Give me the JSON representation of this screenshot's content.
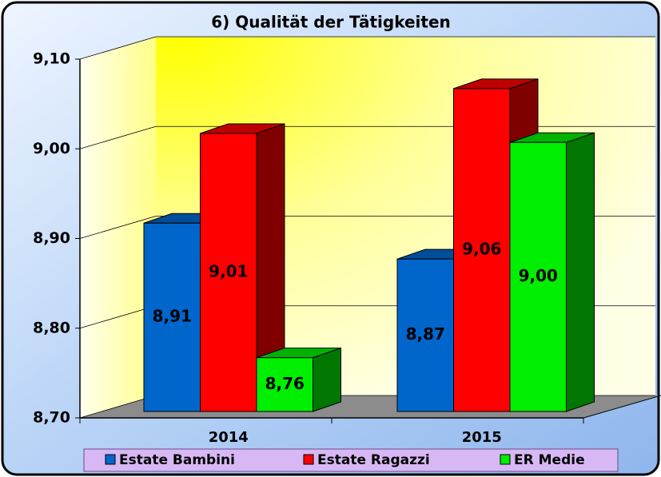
{
  "chart_data": {
    "type": "bar3d",
    "title": "6) Qualität der Tätigkeiten",
    "categories": [
      "2014",
      "2015"
    ],
    "series": [
      {
        "name": "Estate Bambini",
        "color": "#0066cc",
        "values": [
          8.91,
          8.87
        ],
        "value_labels": [
          "8,91",
          "8,87"
        ]
      },
      {
        "name": "Estate Ragazzi",
        "color": "#ff0000",
        "values": [
          9.01,
          9.06
        ],
        "value_labels": [
          "9,01",
          "9,06"
        ]
      },
      {
        "name": "ER Medie",
        "color": "#00ee00",
        "values": [
          8.76,
          9.0
        ],
        "value_labels": [
          "8,76",
          "9,00"
        ]
      }
    ],
    "ylim": [
      8.7,
      9.1
    ],
    "yticks": [
      {
        "value": 8.7,
        "label": "8,70"
      },
      {
        "value": 8.8,
        "label": "8,80"
      },
      {
        "value": 8.9,
        "label": "8,90"
      },
      {
        "value": 9.0,
        "label": "9,00"
      },
      {
        "value": 9.1,
        "label": "9,10"
      }
    ],
    "grid": true,
    "legend": "bottom"
  }
}
